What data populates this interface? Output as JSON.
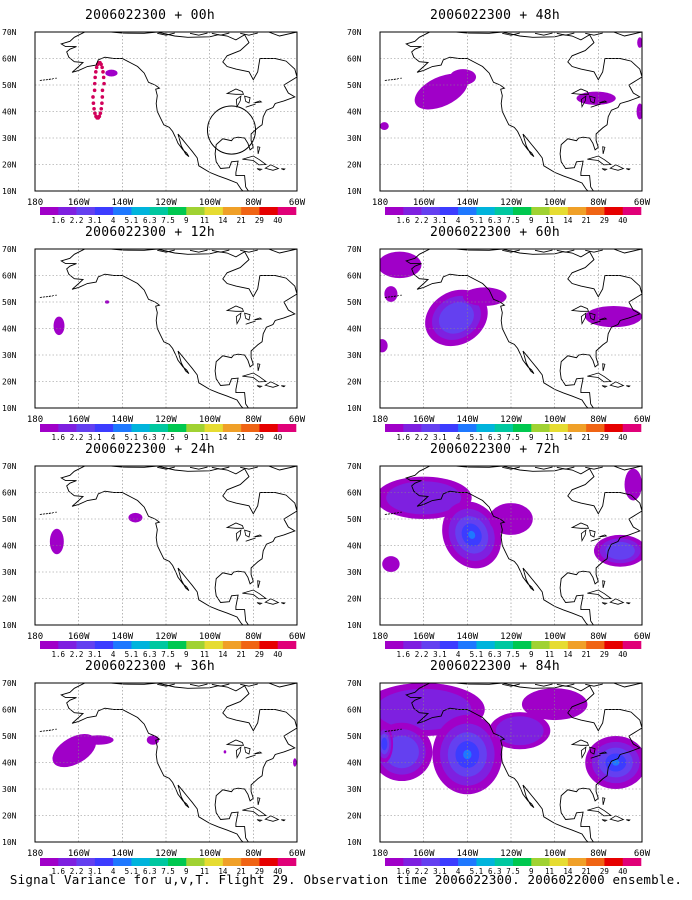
{
  "caption": "Signal Variance for u,v,T. Flight 29. Observation time 2006022300. 2006022000 ensemble.",
  "y_ticks": [
    "70N",
    "60N",
    "50N",
    "40N",
    "30N",
    "20N",
    "10N"
  ],
  "x_ticks": [
    "180",
    "160W",
    "140W",
    "120W",
    "100W",
    "80W",
    "60W"
  ],
  "colorbar": {
    "labels": [
      "1.6",
      "2.2",
      "3.1",
      "4",
      "5.1",
      "6.3",
      "7.5",
      "9",
      "11",
      "14",
      "21",
      "29",
      "40"
    ],
    "colors": [
      "#a000c8",
      "#7e20e0",
      "#6440f0",
      "#3c3cff",
      "#1e78ff",
      "#00b4dc",
      "#00c8a0",
      "#00c850",
      "#a0d232",
      "#e6dc32",
      "#f0a028",
      "#f06414",
      "#e60000",
      "#e00078"
    ]
  },
  "panels": [
    {
      "id": "p00",
      "title": "2006022300 + 00h"
    },
    {
      "id": "p48",
      "title": "2006022300 + 48h"
    },
    {
      "id": "p12",
      "title": "2006022300 + 12h"
    },
    {
      "id": "p60",
      "title": "2006022300 + 60h"
    },
    {
      "id": "p24",
      "title": "2006022300 + 24h"
    },
    {
      "id": "p72",
      "title": "2006022300 + 72h"
    },
    {
      "id": "p36",
      "title": "2006022300 + 36h"
    },
    {
      "id": "p84",
      "title": "2006022300 + 84h"
    }
  ]
}
